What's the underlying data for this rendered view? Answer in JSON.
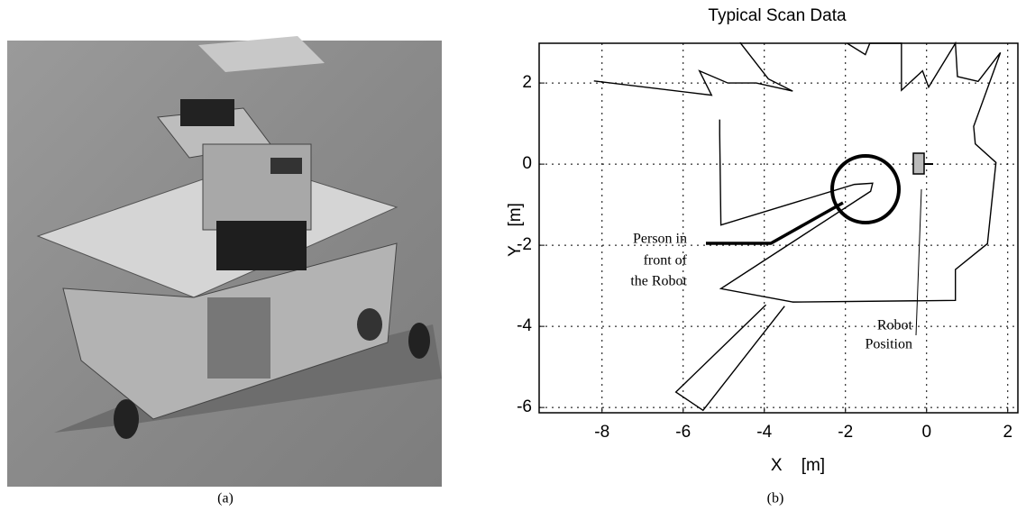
{
  "figure": {
    "caption_a": "(a)",
    "caption_b": "(b)"
  },
  "chart_data": {
    "type": "line",
    "title": "Typical Scan Data",
    "xlabel": "X    [m]",
    "ylabel": "Y    [m]",
    "x": [
      -8.2,
      -5.3,
      -5.6,
      -4.9,
      -4.2,
      -3.3,
      -3.9,
      -4.6,
      null,
      -5.1,
      -5.1,
      -5.07,
      -1.78,
      -1.33,
      -1.38,
      -5.07,
      -3.29,
      null,
      -3.5,
      -5.51,
      -6.18,
      -3.96,
      null,
      -1.96,
      -1.51,
      -1.4,
      -0.62,
      -0.62,
      -0.1,
      0.05,
      0.71,
      0.76,
      1.27,
      1.82,
      1.16,
      1.2,
      1.71,
      1.6,
      1.5,
      0.71,
      0.71,
      -3.3
    ],
    "color": "#000000",
    "values": [
      2.05,
      1.7,
      2.3,
      2.0,
      2.0,
      1.8,
      2.1,
      3.0,
      null,
      1.1,
      0.76,
      -1.5,
      -0.5,
      -0.47,
      -0.67,
      -3.07,
      -3.4,
      null,
      -3.5,
      -6.07,
      -5.62,
      -3.47,
      null,
      2.98,
      2.7,
      2.98,
      2.98,
      1.82,
      2.3,
      1.9,
      2.98,
      2.16,
      2.04,
      2.75,
      0.93,
      0.5,
      0.04,
      -1.0,
      -1.96,
      -2.6,
      -3.36,
      -3.4
    ],
    "xlim": [
      -9.55,
      2.25
    ],
    "ylim": [
      -6.13,
      2.98
    ],
    "xticks": [
      -8,
      -6,
      -4,
      -2,
      0,
      2
    ],
    "yticks": [
      -6,
      -4,
      -2,
      0,
      2
    ],
    "grid": true,
    "annotations": {
      "person": [
        "Person in",
        "front of",
        "the Robot"
      ],
      "robot": [
        "Robot",
        "Position"
      ]
    }
  }
}
